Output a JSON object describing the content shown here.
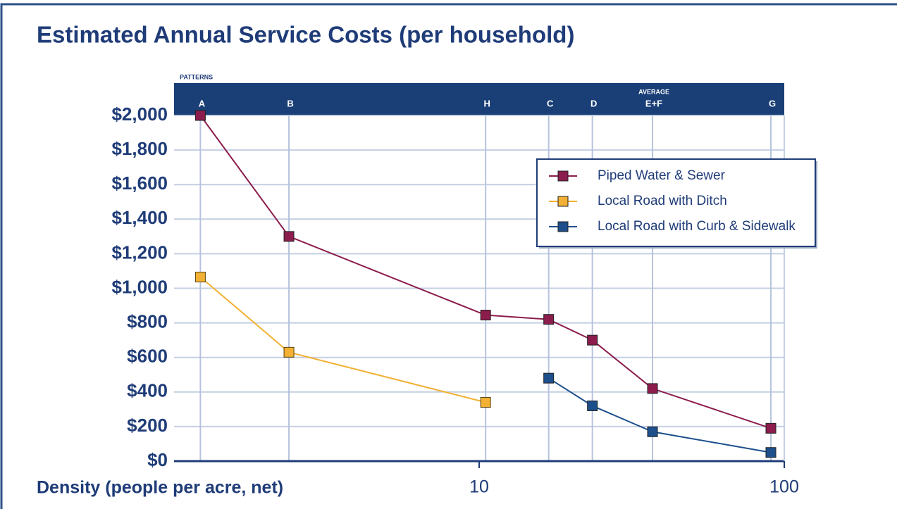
{
  "chart_data": {
    "type": "line",
    "title": "Estimated Annual Service Costs (per household)",
    "x_label": "Density (people per acre, net)",
    "pattern_header": "Patterns",
    "pattern_note": "Average",
    "categories": [
      "A",
      "B",
      "H",
      "C",
      "D",
      "E+F",
      "G"
    ],
    "x": [
      1.22,
      2.38,
      10.5,
      16.9,
      23.5,
      37,
      90.4
    ],
    "x_log": true,
    "xlim": [
      1,
      100
    ],
    "xticks": [
      10,
      100
    ],
    "ylim": [
      0,
      2000
    ],
    "yticks": [
      {
        "value": 0,
        "label": "$0"
      },
      {
        "value": 200,
        "label": "$200"
      },
      {
        "value": 400,
        "label": "$400"
      },
      {
        "value": 600,
        "label": "$600"
      },
      {
        "value": 800,
        "label": "$800"
      },
      {
        "value": 1000,
        "label": "$1,000"
      },
      {
        "value": 1200,
        "label": "$1,200"
      },
      {
        "value": 1400,
        "label": "$1,400"
      },
      {
        "value": 1600,
        "label": "$1,600"
      },
      {
        "value": 1800,
        "label": "$1,800"
      },
      {
        "value": 2000,
        "label": "$2,000"
      }
    ],
    "grid": true,
    "legend": "upper right",
    "series": [
      {
        "name": "Piped Water & Sewer",
        "color": "#8b1c4c",
        "values": [
          2000,
          1300,
          845,
          820,
          700,
          420,
          190
        ]
      },
      {
        "name": "Local Road with Ditch",
        "color": "#f2b134",
        "values": [
          1065,
          630,
          340,
          null,
          null,
          null,
          null
        ]
      },
      {
        "name": "Local Road with Curb & Sidewalk",
        "color": "#1c4f8c",
        "values": [
          null,
          null,
          null,
          480,
          320,
          170,
          50
        ]
      }
    ]
  }
}
